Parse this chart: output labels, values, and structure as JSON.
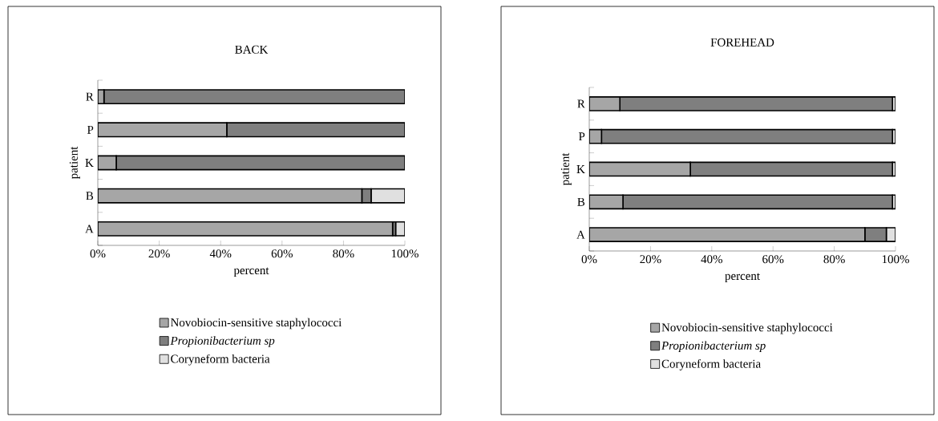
{
  "chart_data": [
    {
      "type": "bar",
      "orientation": "horizontal",
      "stacked": true,
      "title": "BACK",
      "xlabel": "percent",
      "ylabel": "patient",
      "categories": [
        "R",
        "P",
        "K",
        "B",
        "A"
      ],
      "xlim": [
        0,
        100
      ],
      "xticks": [
        {
          "value": 0,
          "label": "0%"
        },
        {
          "value": 20,
          "label": "20%"
        },
        {
          "value": 40,
          "label": "40%"
        },
        {
          "value": 60,
          "label": "60%"
        },
        {
          "value": 80,
          "label": "80%"
        },
        {
          "value": 100,
          "label": "100%"
        }
      ],
      "legend": "bottom",
      "series": [
        {
          "name": "Novobiocin-sensitive staphylococci",
          "color": "#a6a6a6",
          "values": [
            2,
            42,
            6,
            86,
            96
          ]
        },
        {
          "name": "*Propionibacterium sp*",
          "color": "#7f7f7f",
          "values": [
            98,
            58,
            94,
            3,
            1
          ]
        },
        {
          "name": "Coryneform bacteria",
          "color": "#e0e0e0",
          "values": [
            0,
            0,
            0,
            11,
            3
          ]
        }
      ]
    },
    {
      "type": "bar",
      "orientation": "horizontal",
      "stacked": true,
      "title": "FOREHEAD",
      "xlabel": "percent",
      "ylabel": "patient",
      "categories": [
        "R",
        "P",
        "K",
        "B",
        "A"
      ],
      "xlim": [
        0,
        100
      ],
      "xticks": [
        {
          "value": 0,
          "label": "0%"
        },
        {
          "value": 20,
          "label": "20%"
        },
        {
          "value": 40,
          "label": "40%"
        },
        {
          "value": 60,
          "label": "60%"
        },
        {
          "value": 80,
          "label": "80%"
        },
        {
          "value": 100,
          "label": "100%"
        }
      ],
      "legend": "bottom",
      "series": [
        {
          "name": "Novobiocin-sensitive staphylococci",
          "color": "#a6a6a6",
          "values": [
            10,
            4,
            33,
            11,
            90
          ]
        },
        {
          "name": "*Propionibacterium sp*",
          "color": "#7f7f7f",
          "values": [
            89,
            95,
            66,
            88,
            7
          ]
        },
        {
          "name": "Coryneform bacteria",
          "color": "#e0e0e0",
          "values": [
            1,
            1,
            1,
            1,
            3
          ]
        }
      ]
    }
  ]
}
